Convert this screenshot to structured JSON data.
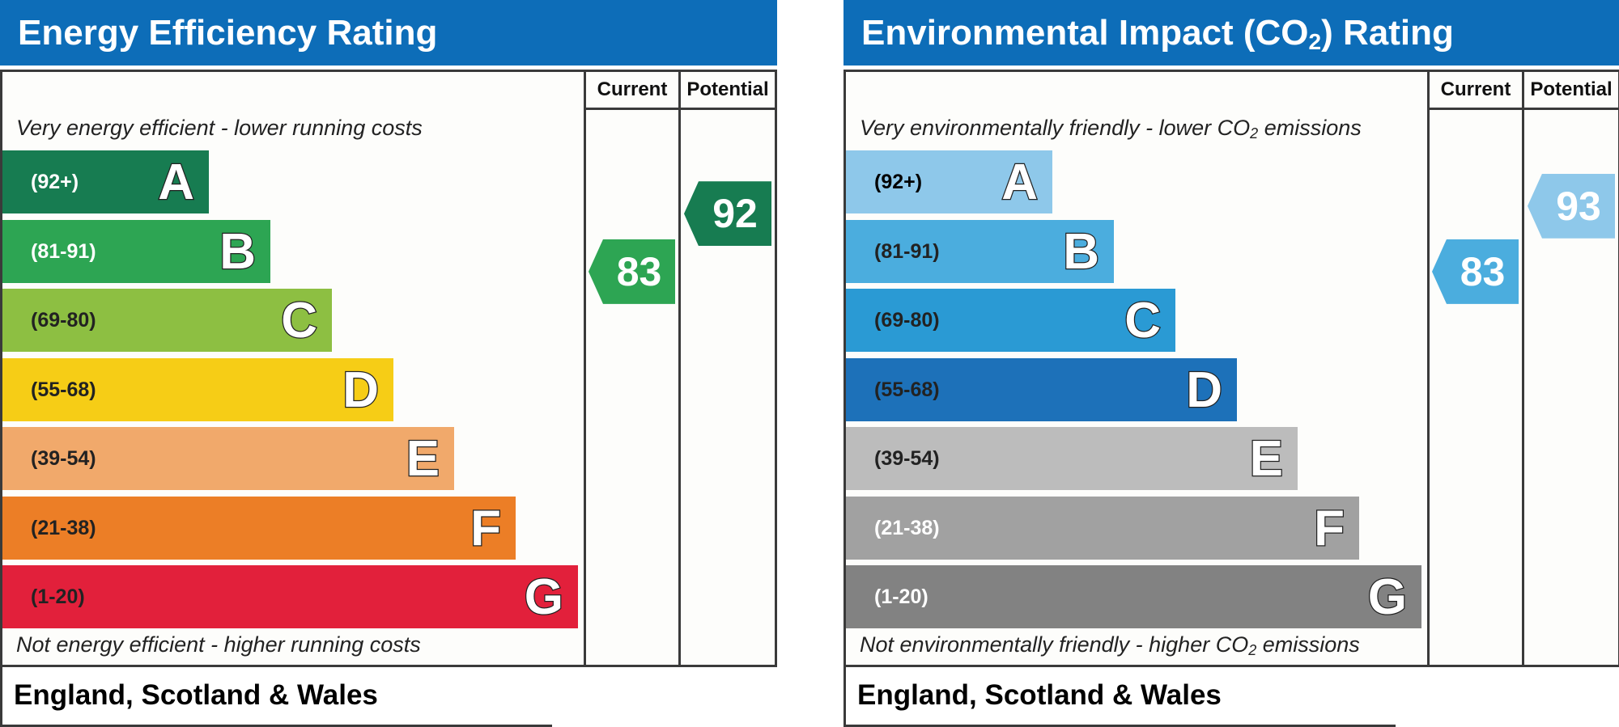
{
  "panels": [
    {
      "title": "Energy Efficiency Rating",
      "title_sub": "",
      "title_suffix": "",
      "col_current": "Current",
      "col_potential": "Potential",
      "top_caption": "Very energy efficient - lower running costs",
      "top_caption_sub": "",
      "top_caption_suffix": "",
      "bottom_caption": "Not energy efficient - higher running costs",
      "bottom_caption_sub": "",
      "bottom_caption_suffix": "",
      "footer": "England, Scotland & Wales",
      "bands": [
        {
          "range": "(92+)",
          "letter": "A",
          "color": "#177c51",
          "text_color": "#ffffff"
        },
        {
          "range": "(81-91)",
          "letter": "B",
          "color": "#2da553",
          "text_color": "#ffffff"
        },
        {
          "range": "(69-80)",
          "letter": "C",
          "color": "#8dbf42",
          "text_color": "#222222"
        },
        {
          "range": "(55-68)",
          "letter": "D",
          "color": "#f6cd16",
          "text_color": "#222222"
        },
        {
          "range": "(39-54)",
          "letter": "E",
          "color": "#f1a96b",
          "text_color": "#222222"
        },
        {
          "range": "(21-38)",
          "letter": "F",
          "color": "#ec7e26",
          "text_color": "#222222"
        },
        {
          "range": "(1-20)",
          "letter": "G",
          "color": "#e2203b",
          "text_color": "#222222"
        }
      ],
      "current": {
        "value": "83",
        "color": "#2da553"
      },
      "potential": {
        "value": "92",
        "color": "#177c51"
      }
    },
    {
      "title": "Environmental Impact (CO",
      "title_sub": "2",
      "title_suffix": ") Rating",
      "col_current": "Current",
      "col_potential": "Potential",
      "top_caption": "Very environmentally friendly - lower CO",
      "top_caption_sub": "2",
      "top_caption_suffix": " emissions",
      "bottom_caption": "Not environmentally friendly - higher CO",
      "bottom_caption_sub": "2",
      "bottom_caption_suffix": " emissions",
      "footer": "England, Scotland & Wales",
      "bands": [
        {
          "range": "(92+)",
          "letter": "A",
          "color": "#8ec8ea",
          "text_color": "#000000"
        },
        {
          "range": "(81-91)",
          "letter": "B",
          "color": "#4badde",
          "text_color": "#222222"
        },
        {
          "range": "(69-80)",
          "letter": "C",
          "color": "#2a9ad4",
          "text_color": "#222222"
        },
        {
          "range": "(55-68)",
          "letter": "D",
          "color": "#1d71b9",
          "text_color": "#222222"
        },
        {
          "range": "(39-54)",
          "letter": "E",
          "color": "#bcbcbc",
          "text_color": "#222222"
        },
        {
          "range": "(21-38)",
          "letter": "F",
          "color": "#a1a1a1",
          "text_color": "#ffffff"
        },
        {
          "range": "(1-20)",
          "letter": "G",
          "color": "#828282",
          "text_color": "#ffffff"
        }
      ],
      "current": {
        "value": "83",
        "color": "#4badde"
      },
      "potential": {
        "value": "93",
        "color": "#8ec8ea"
      }
    }
  ],
  "chart_data": [
    {
      "type": "bar",
      "title": "Energy Efficiency Rating",
      "categories": [
        "A",
        "B",
        "C",
        "D",
        "E",
        "F",
        "G"
      ],
      "ranges": [
        "(92+)",
        "(81-91)",
        "(69-80)",
        "(55-68)",
        "(39-54)",
        "(21-38)",
        "(1-20)"
      ],
      "current": 83,
      "potential": 92
    },
    {
      "type": "bar",
      "title": "Environmental Impact (CO2) Rating",
      "categories": [
        "A",
        "B",
        "C",
        "D",
        "E",
        "F",
        "G"
      ],
      "ranges": [
        "(92+)",
        "(81-91)",
        "(69-80)",
        "(55-68)",
        "(39-54)",
        "(21-38)",
        "(1-20)"
      ],
      "current": 83,
      "potential": 93
    }
  ]
}
